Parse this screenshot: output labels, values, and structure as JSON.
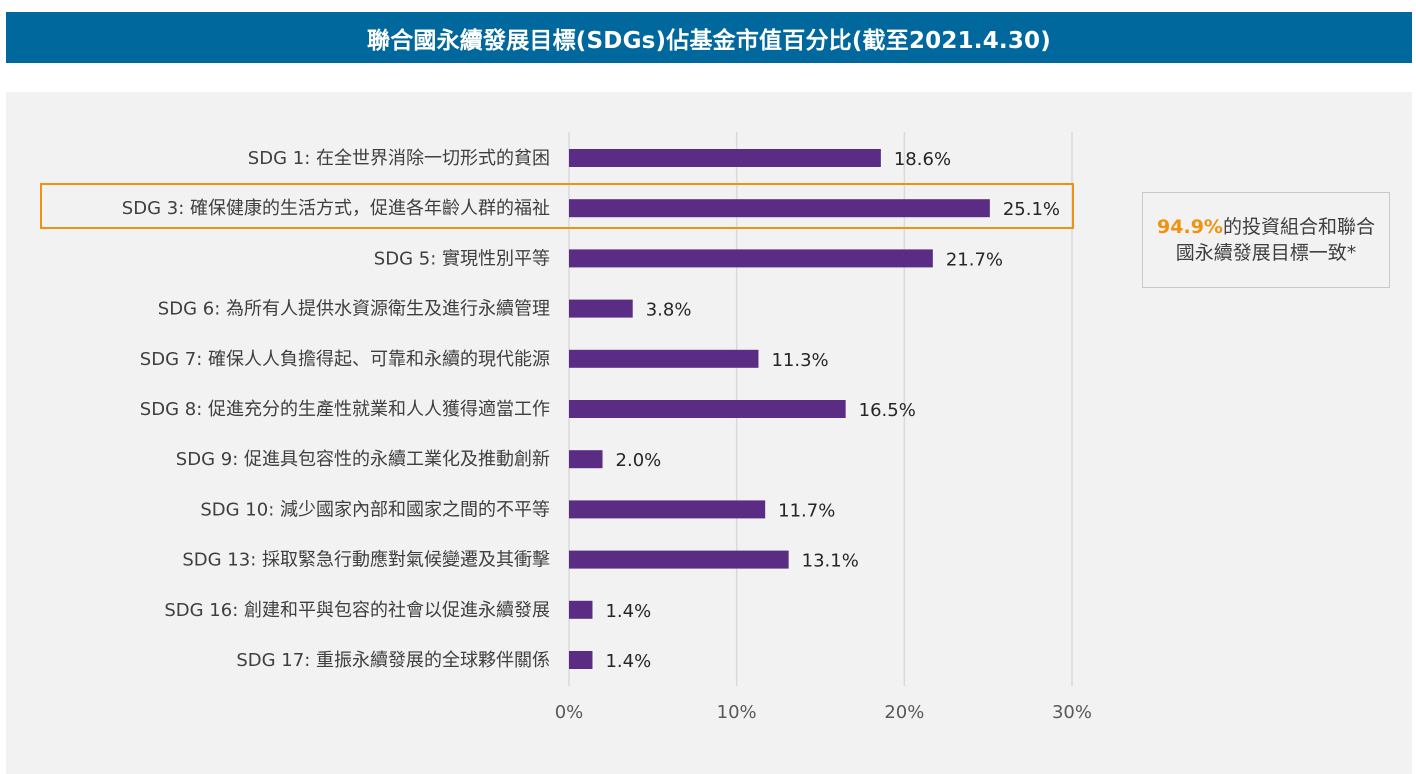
{
  "title": "聯合國永續發展目標(SDGs)佔基金市值百分比(截至2021.4.30)",
  "callout": {
    "highlight": "94.9%",
    "text": "的投資組合和聯合國永續發展目標一致*"
  },
  "colors": {
    "bar": "#5b2c83",
    "title_bg": "#00689c",
    "highlight": "#f0920f"
  },
  "chart_data": {
    "type": "bar",
    "orientation": "horizontal",
    "categories": [
      "SDG 1: 在全世界消除一切形式的貧困",
      "SDG 3: 確保健康的生活方式，促進各年齡人群的福祉",
      "SDG 5: 實現性別平等",
      "SDG 6: 為所有人提供水資源衛生及進行永續管理",
      "SDG 7: 確保人人負擔得起、可靠和永續的現代能源",
      "SDG 8: 促進充分的生產性就業和人人獲得適當工作",
      "SDG 9: 促進具包容性的永續工業化及推動創新",
      "SDG 10: 減少國家內部和國家之間的不平等",
      "SDG 13: 採取緊急行動應對氣候變遷及其衝擊",
      "SDG 16: 創建和平與包容的社會以促進永續發展",
      "SDG 17: 重振永續發展的全球夥伴關係"
    ],
    "values": [
      18.6,
      25.1,
      21.7,
      3.8,
      11.3,
      16.5,
      2.0,
      11.7,
      13.1,
      1.4,
      1.4
    ],
    "value_labels": [
      "18.6%",
      "25.1%",
      "21.7%",
      "3.8%",
      "11.3%",
      "16.5%",
      "2.0%",
      "11.7%",
      "13.1%",
      "1.4%",
      "1.4%"
    ],
    "xlim": [
      0,
      30
    ],
    "ticks": [
      0,
      10,
      20,
      30
    ],
    "tick_labels": [
      "0%",
      "10%",
      "20%",
      "30%"
    ],
    "highlighted_category": "SDG 3: 確保健康的生活方式，促進各年齡人群的福祉",
    "grid": true
  }
}
